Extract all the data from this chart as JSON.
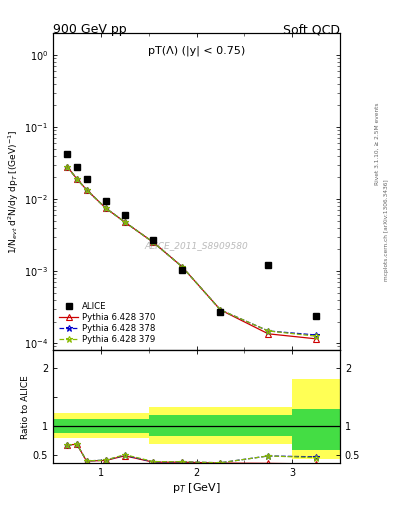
{
  "title_left": "900 GeV pp",
  "title_right": "Soft QCD",
  "annotation": "pT(Λ) (|y| < 0.75)",
  "watermark": "ALICE_2011_S8909580",
  "right_label": "mcplots.cern.ch [arXiv:1306.3436]",
  "right_label2": "Rivet 3.1.10, ≥ 2.5M events",
  "ylabel_main": "1/N$_{evt}$ d$^2$N/dy dp$_T$ [(GeV)$^{-1}$]",
  "ylabel_ratio": "Ratio to ALICE",
  "xlabel": "p$_T$ [GeV]",
  "alice_x": [
    0.65,
    0.75,
    0.85,
    1.05,
    1.25,
    1.55,
    1.85,
    2.25,
    2.75,
    3.25
  ],
  "alice_y": [
    0.042,
    0.028,
    0.019,
    0.0095,
    0.006,
    0.0027,
    0.00105,
    0.00027,
    0.0012,
    0.00024
  ],
  "py370_x": [
    0.65,
    0.75,
    0.85,
    1.05,
    1.25,
    1.55,
    1.85,
    2.25,
    2.75,
    3.25
  ],
  "py370_y": [
    0.028,
    0.019,
    0.0135,
    0.0075,
    0.0048,
    0.0025,
    0.00115,
    0.00029,
    0.000135,
    0.000115
  ],
  "py378_x": [
    0.65,
    0.75,
    0.85,
    1.05,
    1.25,
    1.55,
    1.85,
    2.25,
    2.75,
    3.25
  ],
  "py378_y": [
    0.028,
    0.019,
    0.0135,
    0.0075,
    0.0048,
    0.0025,
    0.00115,
    0.00029,
    0.000148,
    0.00013
  ],
  "py379_x": [
    0.65,
    0.75,
    0.85,
    1.05,
    1.25,
    1.55,
    1.85,
    2.25,
    2.75,
    3.25
  ],
  "py379_y": [
    0.028,
    0.019,
    0.0135,
    0.0075,
    0.0048,
    0.0025,
    0.00115,
    0.00029,
    0.000148,
    0.000125
  ],
  "yellow_xbins": [
    0.5,
    1.0,
    1.5,
    2.0,
    3.0,
    3.5
  ],
  "yellow_lo": [
    0.78,
    0.78,
    0.68,
    0.68,
    0.42,
    0.42
  ],
  "yellow_hi": [
    1.22,
    1.22,
    1.32,
    1.32,
    1.8,
    1.8
  ],
  "green_lo": [
    0.88,
    0.88,
    0.82,
    0.82,
    0.58,
    0.58
  ],
  "green_hi": [
    1.12,
    1.12,
    1.18,
    1.18,
    1.28,
    1.28
  ],
  "ratio370_x": [
    0.65,
    0.75,
    0.85,
    1.05,
    1.25,
    1.55,
    1.85,
    2.25,
    2.75,
    3.25
  ],
  "ratio370_y": [
    0.667,
    0.679,
    0.39,
    0.4,
    0.48,
    0.37,
    0.37,
    0.355,
    0.35,
    0.34
  ],
  "ratio378_x": [
    0.65,
    0.75,
    0.85,
    1.05,
    1.25,
    1.55,
    1.85,
    2.25,
    2.75,
    3.25
  ],
  "ratio378_y": [
    0.667,
    0.679,
    0.393,
    0.405,
    0.49,
    0.375,
    0.375,
    0.36,
    0.478,
    0.462
  ],
  "ratio379_x": [
    0.65,
    0.75,
    0.85,
    1.05,
    1.25,
    1.55,
    1.85,
    2.25,
    2.75,
    3.25
  ],
  "ratio379_y": [
    0.668,
    0.679,
    0.393,
    0.405,
    0.5,
    0.38,
    0.378,
    0.36,
    0.478,
    0.448
  ],
  "color_alice": "#000000",
  "color_py370": "#cc0000",
  "color_py378": "#0000cc",
  "color_py379": "#88bb00",
  "color_green": "#44dd44",
  "color_yellow": "#ffff55",
  "xlim": [
    0.5,
    3.5
  ],
  "ylim_main": [
    8e-05,
    2.0
  ],
  "ylim_ratio": [
    0.35,
    2.3
  ]
}
